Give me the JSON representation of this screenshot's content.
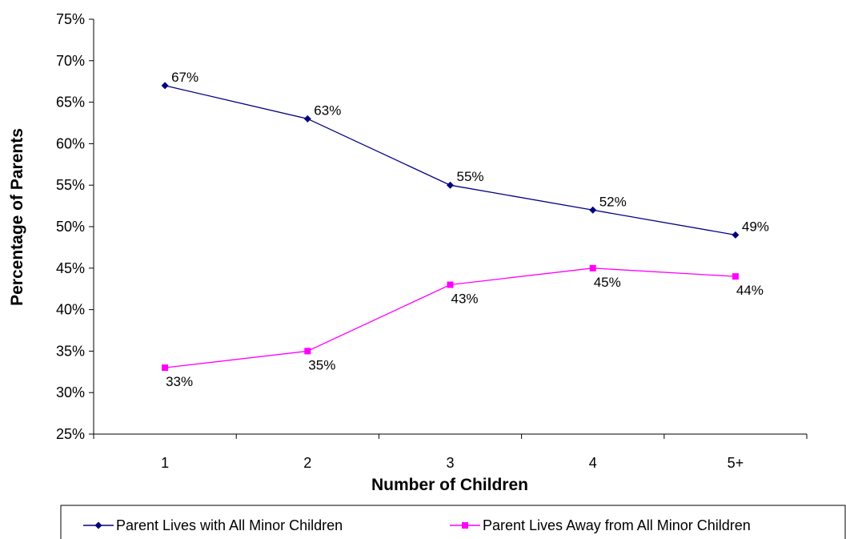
{
  "chart_data": {
    "type": "line",
    "title": "",
    "xlabel": "Number of Children",
    "ylabel": "Percentage of Parents",
    "categories": [
      "1",
      "2",
      "3",
      "4",
      "5+"
    ],
    "ylim": [
      25,
      75
    ],
    "y_ticks": [
      25,
      30,
      35,
      40,
      45,
      50,
      55,
      60,
      65,
      70,
      75
    ],
    "y_tick_format": "%",
    "grid": false,
    "legend_position": "bottom",
    "series": [
      {
        "name": "Parent Lives with All Minor Children",
        "values": [
          67,
          63,
          55,
          52,
          49
        ],
        "labels": [
          "67%",
          "63%",
          "55%",
          "52%",
          "49%"
        ],
        "color": "#000080",
        "marker": "diamond",
        "label_position": "above"
      },
      {
        "name": "Parent Lives Away from All Minor Children",
        "values": [
          33,
          35,
          43,
          45,
          44
        ],
        "labels": [
          "33%",
          "35%",
          "43%",
          "45%",
          "44%"
        ],
        "color": "#FF00FF",
        "marker": "square",
        "label_position": "below"
      }
    ]
  }
}
